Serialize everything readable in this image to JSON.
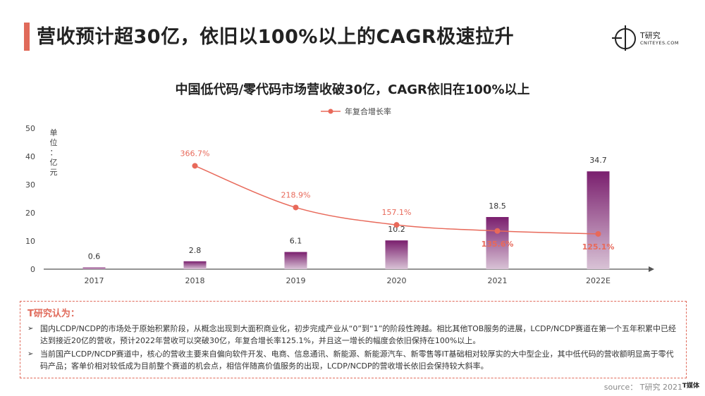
{
  "header": {
    "title": "营收预计超30亿，依旧以100%以上的CAGR极速拉升",
    "logo_text": "T研究",
    "logo_sub": "CNITEYES.COM"
  },
  "chart_data": {
    "type": "bar",
    "title": "中国低代码/零代码市场营收破30亿，CAGR依旧在100%以上",
    "categories": [
      "2017",
      "2018",
      "2019",
      "2020",
      "2021",
      "2022E"
    ],
    "series": [
      {
        "name": "",
        "type": "bar",
        "values": [
          0.6,
          2.8,
          6.1,
          10.2,
          18.5,
          34.7
        ],
        "labels": [
          "0.6",
          "2.8",
          "6.1",
          "10.2",
          "18.5",
          "34.7"
        ]
      },
      {
        "name": "年复合增长率",
        "type": "line",
        "values": [
          null,
          366.7,
          218.9,
          157.1,
          135.6,
          125.1
        ],
        "labels": [
          "",
          "366.7%",
          "218.9%",
          "157.1%",
          "135.6%",
          "125.1%"
        ]
      }
    ],
    "y_unit_label": "单位：亿元",
    "yticks": [
      "0",
      "10",
      "20",
      "30",
      "40",
      "50"
    ],
    "ylim": [
      0,
      50
    ],
    "y2lim": [
      0,
      500
    ],
    "legend_position": "top",
    "colors": {
      "bar": "#7a1f6e",
      "bar_light": "#d9c3d6",
      "line": "#e8695a",
      "axis": "#555555"
    }
  },
  "insight": {
    "title": "T研究认为：",
    "items": [
      "国内LCDP/NCDP的市场处于原始积累阶段，从概念出现到大面积商业化，初步完成产业从“0”到“1”的阶段性跨越。相比其他TOB服务的进展，LCDP/NCDP赛道在第一个五年积累中已经达到接近20亿的营收，预计2022年营收可以突破30亿，年复合增长率125.1%，并且这一增长的幅度会依旧保持在100%以上。",
      "当前国产LCDP/NCDP赛道中，核心的营收主要来自偏向软件开发、电商、信息通讯、新能源、新能源汽车、新零售等IT基础相对较厚实的大中型企业，其中低代码的营收额明显高于零代码产品；客单价相对较低成为目前整个赛道的机会点，相信伴随高价值服务的出现，LCDP/NCDP的营收增长依旧会保持较大斜率。"
    ],
    "bullet": "➢"
  },
  "footer": {
    "source": "source： T研究 2021",
    "mini_logo": "T媒体"
  }
}
